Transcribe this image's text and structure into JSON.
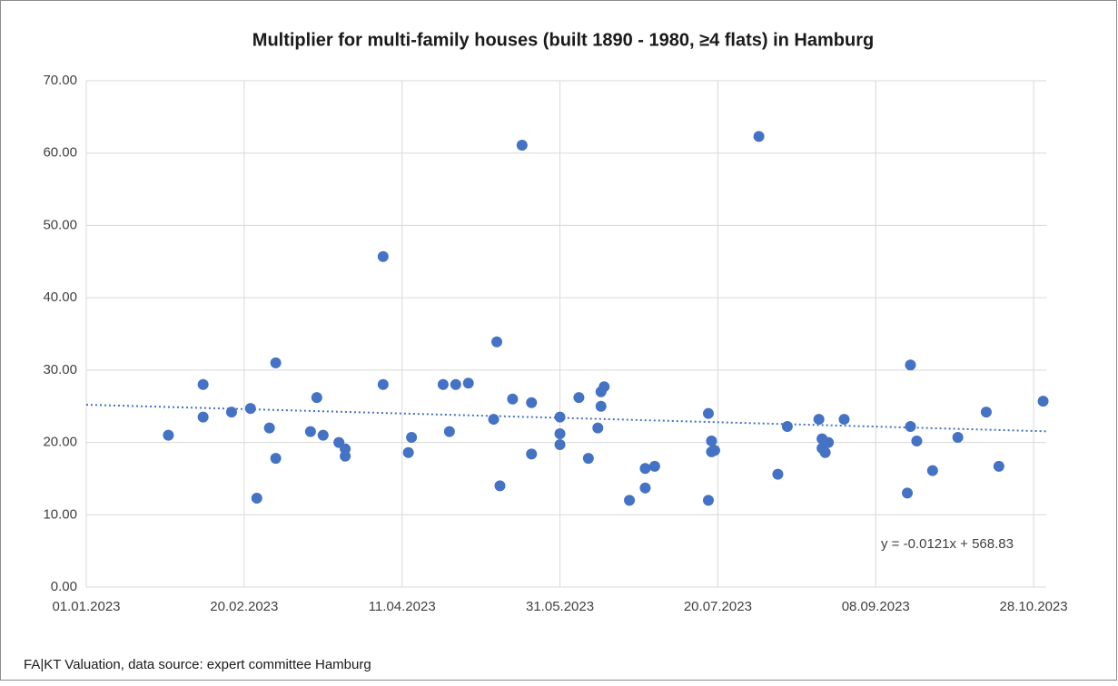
{
  "chart_data": {
    "type": "scatter",
    "title": "Multiplier for multi-family houses  (built 1890  - 1980, ≥4 flats)  in Hamburg",
    "source": "FA|KT Valuation, data source: expert committee Hamburg",
    "color": "#4472c4",
    "x": [
      "27.01.2023",
      "07.02.2023",
      "07.02.2023",
      "16.02.2023",
      "22.02.2023",
      "24.02.2023",
      "28.02.2023",
      "02.03.2023",
      "02.03.2023",
      "13.03.2023",
      "15.03.2023",
      "17.03.2023",
      "22.03.2023",
      "24.03.2023",
      "24.03.2023",
      "05.04.2023",
      "05.04.2023",
      "13.04.2023",
      "14.04.2023",
      "24.04.2023",
      "26.04.2023",
      "28.04.2023",
      "02.05.2023",
      "10.05.2023",
      "11.05.2023",
      "12.05.2023",
      "16.05.2023",
      "19.05.2023",
      "22.05.2023",
      "22.05.2023",
      "31.05.2023",
      "31.05.2023",
      "31.05.2023",
      "06.06.2023",
      "09.06.2023",
      "12.06.2023",
      "13.06.2023",
      "13.06.2023",
      "14.06.2023",
      "22.06.2023",
      "27.06.2023",
      "27.06.2023",
      "30.06.2023",
      "17.07.2023",
      "17.07.2023",
      "18.07.2023",
      "18.07.2023",
      "19.07.2023",
      "02.08.2023",
      "08.08.2023",
      "11.08.2023",
      "21.08.2023",
      "22.08.2023",
      "22.08.2023",
      "23.08.2023",
      "24.08.2023",
      "29.08.2023",
      "18.09.2023",
      "19.09.2023",
      "19.09.2023",
      "21.09.2023",
      "26.09.2023",
      "04.10.2023",
      "13.10.2023",
      "17.10.2023",
      "31.10.2023"
    ],
    "values": [
      21.0,
      28.0,
      23.5,
      24.2,
      24.7,
      12.3,
      22.0,
      31.0,
      17.8,
      21.5,
      26.2,
      21.0,
      20.0,
      19.1,
      18.1,
      45.7,
      28.0,
      18.6,
      20.7,
      28.0,
      21.5,
      28.0,
      28.2,
      23.2,
      33.9,
      14.0,
      26.0,
      61.1,
      25.5,
      18.4,
      23.5,
      21.2,
      19.7,
      26.2,
      17.8,
      22.0,
      25.0,
      27.0,
      27.7,
      12.0,
      13.7,
      16.4,
      16.7,
      24.0,
      12.0,
      20.2,
      18.7,
      18.9,
      62.3,
      15.6,
      22.2,
      23.2,
      20.5,
      19.2,
      18.6,
      20.0,
      23.2,
      13.0,
      30.7,
      22.2,
      20.2,
      16.1,
      20.7,
      24.2,
      16.7,
      25.7
    ],
    "xlim": [
      "01.01.2023",
      "01.11.2023"
    ],
    "xticks": [
      "01.01.2023",
      "20.02.2023",
      "11.04.2023",
      "31.05.2023",
      "20.07.2023",
      "08.09.2023",
      "28.10.2023"
    ],
    "ylim": [
      0,
      70
    ],
    "yticks": [
      {
        "value": 0,
        "label": "0.00"
      },
      {
        "value": 10,
        "label": "10.00"
      },
      {
        "value": 20,
        "label": "20.00"
      },
      {
        "value": 30,
        "label": "30.00"
      },
      {
        "value": 40,
        "label": "40.00"
      },
      {
        "value": 50,
        "label": "50.00"
      },
      {
        "value": 60,
        "label": "60.00"
      },
      {
        "value": 70,
        "label": "70.00"
      }
    ],
    "grid": true,
    "trendline": {
      "label": "y = -0.0121x + 568.83",
      "slope": -0.0121,
      "intercept": 568.83
    }
  }
}
